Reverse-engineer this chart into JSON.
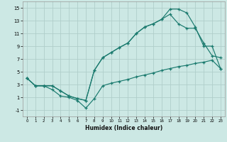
{
  "xlabel": "Humidex (Indice chaleur)",
  "bg_color": "#cce8e4",
  "grid_color": "#b0ceca",
  "line_color": "#1a7a6e",
  "xlim": [
    -0.5,
    23.5
  ],
  "ylim": [
    -2,
    16
  ],
  "xticks": [
    0,
    1,
    2,
    3,
    4,
    5,
    6,
    7,
    8,
    9,
    10,
    11,
    12,
    13,
    14,
    15,
    16,
    17,
    18,
    19,
    20,
    21,
    22,
    23
  ],
  "yticks": [
    -1,
    1,
    3,
    5,
    7,
    9,
    11,
    13,
    15
  ],
  "line1_x": [
    0,
    1,
    2,
    3,
    4,
    5,
    6,
    7,
    8,
    9,
    10,
    11,
    12,
    13,
    14,
    15,
    16,
    17,
    18,
    19,
    20,
    21,
    22,
    23
  ],
  "line1_y": [
    4,
    2.8,
    2.8,
    2.8,
    2.0,
    1.2,
    0.8,
    0.5,
    5.2,
    7.2,
    8.0,
    8.8,
    9.5,
    11.0,
    12.0,
    12.5,
    13.2,
    14.8,
    14.8,
    14.2,
    12.0,
    9.0,
    9.0,
    5.5
  ],
  "line2_x": [
    0,
    1,
    2,
    3,
    4,
    5,
    6,
    7,
    8,
    9,
    10,
    11,
    12,
    13,
    14,
    15,
    16,
    17,
    18,
    19,
    20,
    21,
    22,
    23
  ],
  "line2_y": [
    4,
    2.8,
    2.8,
    2.8,
    2.0,
    1.2,
    0.8,
    0.5,
    5.2,
    7.2,
    8.0,
    8.8,
    9.5,
    11.0,
    12.0,
    12.5,
    13.2,
    14.0,
    12.5,
    11.8,
    11.8,
    9.5,
    7.5,
    7.2
  ],
  "line3_x": [
    0,
    1,
    2,
    3,
    4,
    5,
    6,
    7,
    8,
    9,
    10,
    11,
    12,
    13,
    14,
    15,
    16,
    17,
    18,
    19,
    20,
    21,
    22,
    23
  ],
  "line3_y": [
    4,
    2.8,
    2.8,
    2.2,
    1.2,
    1.0,
    0.5,
    -0.7,
    0.8,
    2.8,
    3.2,
    3.5,
    3.8,
    4.2,
    4.5,
    4.8,
    5.2,
    5.5,
    5.8,
    6.0,
    6.3,
    6.5,
    6.8,
    5.5
  ]
}
